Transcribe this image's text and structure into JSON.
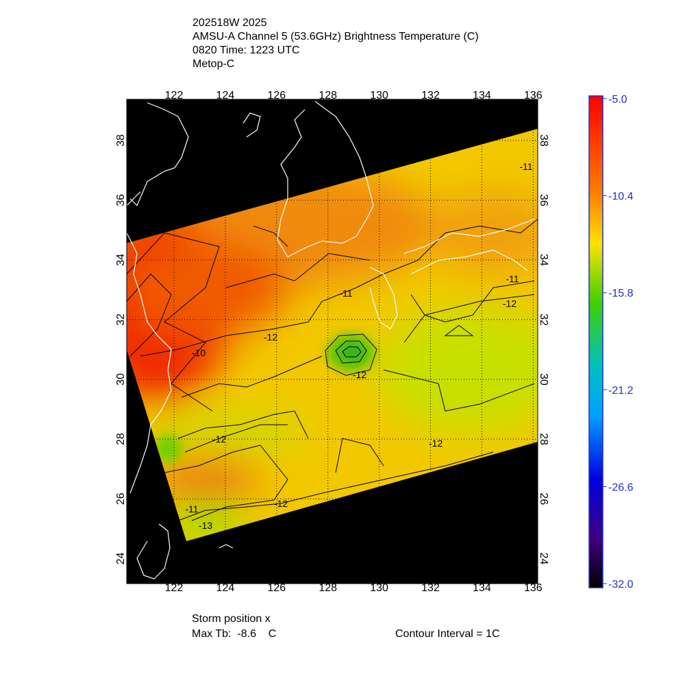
{
  "header": {
    "lines": [
      "202518W 2025",
      "AMSU-A Channel 5 (53.6GHz) Brightness Temperature (C)",
      "0820 Time: 1223 UTC",
      "Metop-C"
    ]
  },
  "map": {
    "lon_ticks": [
      "122",
      "124",
      "126",
      "128",
      "130",
      "132",
      "134",
      "136"
    ],
    "lat_ticks": [
      "38",
      "36",
      "34",
      "32",
      "30",
      "28",
      "26",
      "24"
    ],
    "contour_labels": [
      "-11",
      "-12",
      "-10",
      "-11",
      "-12",
      "-12",
      "-12",
      "-13",
      "-11",
      "-11",
      "-12",
      "-12"
    ]
  },
  "colorbar": {
    "labels": [
      "-5.0",
      "-10.4",
      "-15.8",
      "-21.2",
      "-26.6",
      "-32.0"
    ]
  },
  "footer": {
    "storm_position": "Storm position x",
    "max_tb": "Max Tb:  -8.6    C",
    "contour_interval": "Contour Interval = 1C"
  }
}
